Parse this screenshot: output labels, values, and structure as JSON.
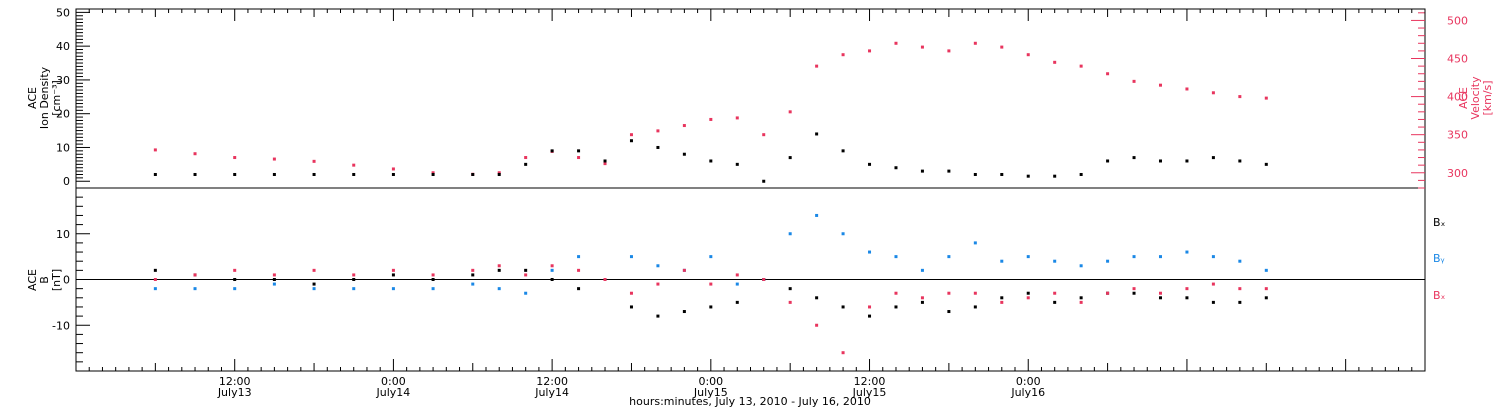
{
  "colors": {
    "black": "#000000",
    "pink": "#e8355e",
    "blue": "#1a88e6",
    "frame": "#000000",
    "background": "#ffffff"
  },
  "chart_data": [
    {
      "type": "scatter",
      "panel": "top",
      "ylabel_left": [
        "ACE",
        "Ion Density",
        "[cm⁻³]"
      ],
      "ylabel_right": [
        "ACE",
        "Velocity",
        "[km/s]"
      ],
      "left_axis": {
        "ylim": [
          -2,
          51
        ],
        "ticks": [
          0,
          10,
          20,
          30,
          40,
          50
        ]
      },
      "right_axis": {
        "ylim": [
          280,
          515
        ],
        "ticks": [
          300,
          350,
          400,
          450,
          500
        ]
      },
      "series": [
        {
          "name": "Ion Density",
          "axis": "left",
          "color": "#000000",
          "x": [
            0,
            3,
            6,
            9,
            12,
            15,
            18,
            21,
            24,
            26,
            28,
            30,
            32,
            34,
            36,
            38,
            40,
            42,
            44,
            46,
            48,
            50,
            52,
            54,
            56,
            58,
            60,
            62,
            64,
            66,
            68,
            70,
            72,
            74,
            76,
            78,
            80,
            82,
            84
          ],
          "y": [
            2,
            2,
            2,
            2,
            2,
            2,
            2,
            2,
            2,
            2,
            5,
            9,
            9,
            6,
            12,
            10,
            8,
            6,
            5,
            0,
            7,
            14,
            9,
            5,
            4,
            3,
            3,
            2,
            2,
            1.5,
            1.5,
            2,
            6,
            7,
            6,
            6,
            7,
            6,
            5
          ]
        },
        {
          "name": "Velocity",
          "axis": "right",
          "color": "#e8355e",
          "x": [
            0,
            3,
            6,
            9,
            12,
            15,
            18,
            21,
            24,
            26,
            28,
            30,
            32,
            34,
            36,
            38,
            40,
            42,
            44,
            46,
            48,
            50,
            52,
            54,
            56,
            58,
            60,
            62,
            64,
            66,
            68,
            70,
            72,
            74,
            76,
            78,
            80,
            82,
            84
          ],
          "y": [
            330,
            325,
            320,
            318,
            315,
            310,
            305,
            300,
            298,
            300,
            320,
            328,
            320,
            312,
            350,
            355,
            362,
            370,
            372,
            350,
            380,
            440,
            455,
            460,
            470,
            465,
            460,
            470,
            465,
            455,
            445,
            440,
            430,
            420,
            415,
            410,
            405,
            400,
            398
          ]
        }
      ]
    },
    {
      "type": "scatter",
      "panel": "bottom",
      "ylabel_left": [
        "ACE",
        "B",
        "[nT]"
      ],
      "ylim": [
        -20,
        20
      ],
      "yticks": [
        -10,
        0,
        10
      ],
      "zero_line": true,
      "legend": [
        "Bₓ",
        "Bᵧ",
        "Bₓ"
      ],
      "legend_placement": "right",
      "series": [
        {
          "name": "Bₓ",
          "color": "#000000",
          "x": [
            0,
            3,
            6,
            9,
            12,
            15,
            18,
            21,
            24,
            26,
            28,
            30,
            32,
            34,
            36,
            38,
            40,
            42,
            44,
            46,
            48,
            50,
            52,
            54,
            56,
            58,
            60,
            62,
            64,
            66,
            68,
            70,
            72,
            74,
            76,
            78,
            80,
            82,
            84
          ],
          "y": [
            2,
            1,
            0,
            0,
            -1,
            0,
            1,
            0,
            1,
            2,
            2,
            0,
            -2,
            0,
            -6,
            -8,
            -7,
            -6,
            -5,
            0,
            -2,
            -4,
            -6,
            -8,
            -6,
            -5,
            -7,
            -6,
            -4,
            -3,
            -5,
            -4,
            -3,
            -3,
            -4,
            -4,
            -5,
            -5,
            -4
          ]
        },
        {
          "name": "Bᵧ",
          "color": "#1a88e6",
          "x": [
            0,
            3,
            6,
            9,
            12,
            15,
            18,
            21,
            24,
            26,
            28,
            30,
            32,
            34,
            36,
            38,
            40,
            42,
            44,
            46,
            48,
            50,
            52,
            54,
            56,
            58,
            60,
            62,
            64,
            66,
            68,
            70,
            72,
            74,
            76,
            78,
            80,
            82,
            84
          ],
          "y": [
            -2,
            -2,
            -2,
            -1,
            -2,
            -2,
            -2,
            -2,
            -1,
            -2,
            -3,
            2,
            5,
            0,
            5,
            3,
            2,
            5,
            -1,
            0,
            10,
            14,
            10,
            6,
            5,
            2,
            5,
            8,
            4,
            5,
            4,
            3,
            4,
            5,
            5,
            6,
            5,
            4,
            2
          ]
        },
        {
          "name": "Bₓ",
          "color": "#e8355e",
          "x": [
            0,
            3,
            6,
            9,
            12,
            15,
            18,
            21,
            24,
            26,
            28,
            30,
            32,
            34,
            36,
            38,
            40,
            42,
            44,
            46,
            48,
            50,
            52,
            54,
            56,
            58,
            60,
            62,
            64,
            66,
            68,
            70,
            72,
            74,
            76,
            78,
            80,
            82,
            84
          ],
          "y": [
            0,
            1,
            2,
            1,
            2,
            1,
            2,
            1,
            2,
            3,
            1,
            3,
            2,
            0,
            -3,
            -1,
            2,
            -1,
            1,
            0,
            -5,
            -10,
            -16,
            -6,
            -3,
            -4,
            -3,
            -3,
            -5,
            -4,
            -3,
            -5,
            -3,
            -2,
            -3,
            -2,
            -1,
            -2,
            -2
          ]
        }
      ]
    }
  ],
  "x_axis": {
    "range_hours": [
      -6,
      96
    ],
    "tick_labels": [
      {
        "time": "12:00",
        "day": "July13",
        "hour": 6
      },
      {
        "time": "0:00",
        "day": "July14",
        "hour": 18
      },
      {
        "time": "12:00",
        "day": "July14",
        "hour": 30
      },
      {
        "time": "0:00",
        "day": "July15",
        "hour": 42
      },
      {
        "time": "12:00",
        "day": "July15",
        "hour": 54
      },
      {
        "time": "0:00",
        "day": "July16",
        "hour": 66
      }
    ],
    "title": "hours:minutes, July 13, 2010 - July 16, 2010"
  }
}
